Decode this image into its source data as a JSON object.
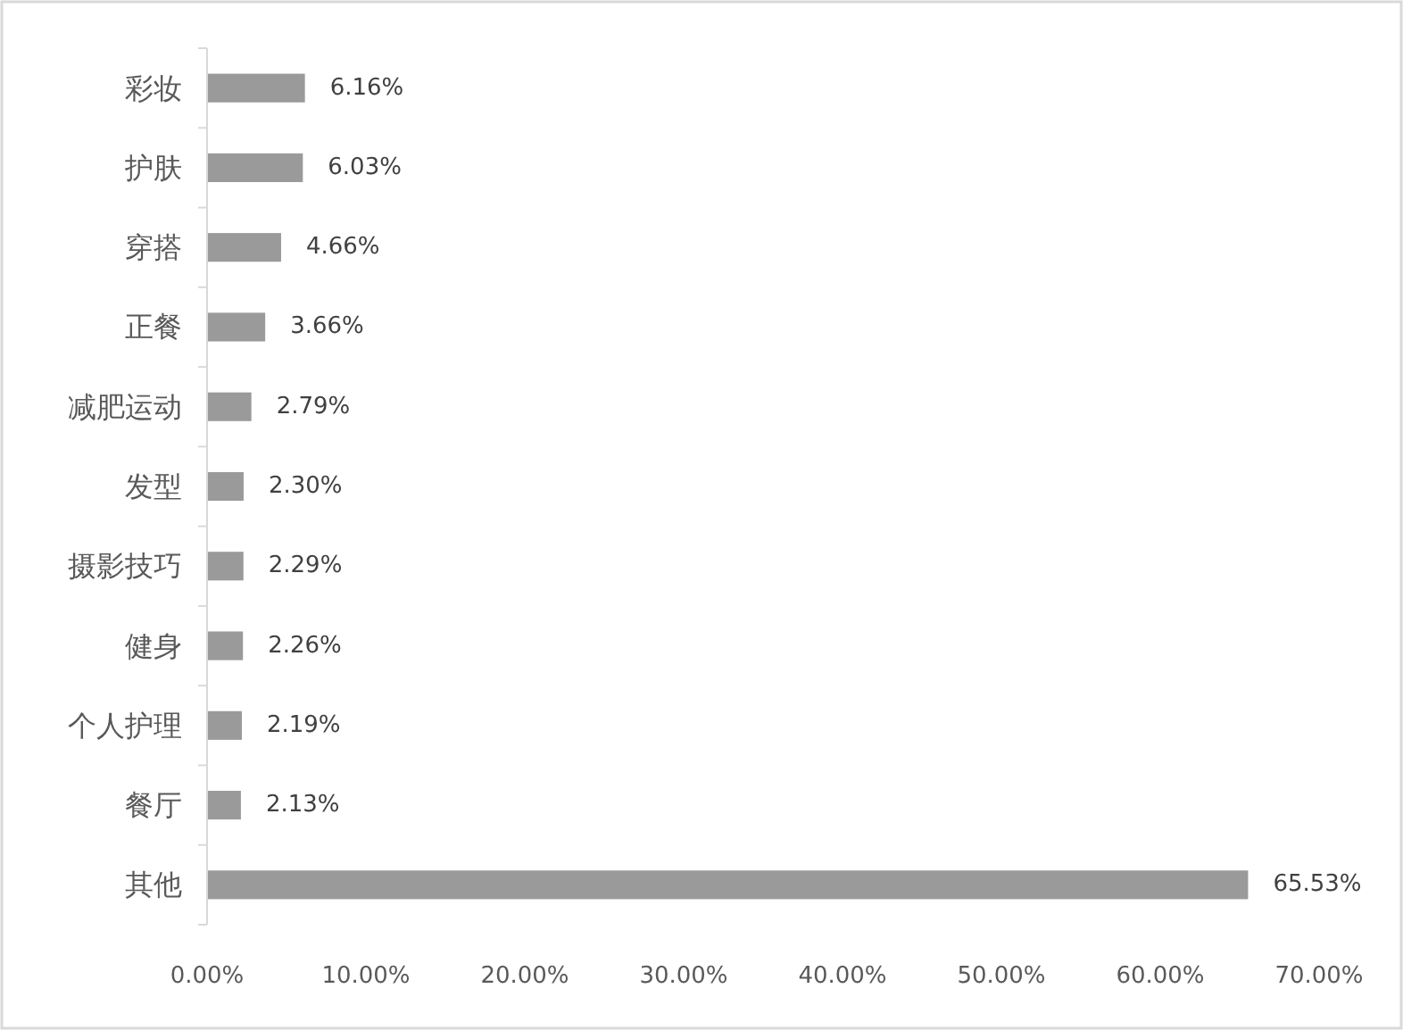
{
  "chart_data": {
    "type": "bar",
    "orientation": "horizontal",
    "categories": [
      "彩妆",
      "护肤",
      "穿搭",
      "正餐",
      "减肥运动",
      "发型",
      "摄影技巧",
      "健身",
      "个人护理",
      "餐厅",
      "其他"
    ],
    "values": [
      6.16,
      6.03,
      4.66,
      3.66,
      2.79,
      2.3,
      2.29,
      2.26,
      2.19,
      2.13,
      65.53
    ],
    "value_labels": [
      "6.16%",
      "6.03%",
      "4.66%",
      "3.66%",
      "2.79%",
      "2.30%",
      "2.29%",
      "2.26%",
      "2.19%",
      "2.13%",
      "65.53%"
    ],
    "color": "#9a9a9a",
    "xlim": [
      0,
      70
    ],
    "xticks": [
      {
        "value": 0,
        "label": "0.00%"
      },
      {
        "value": 10,
        "label": "10.00%"
      },
      {
        "value": 20,
        "label": "20.00%"
      },
      {
        "value": 30,
        "label": "30.00%"
      },
      {
        "value": 40,
        "label": "40.00%"
      },
      {
        "value": 50,
        "label": "50.00%"
      },
      {
        "value": 60,
        "label": "60.00%"
      },
      {
        "value": 70,
        "label": "70.00%"
      }
    ]
  }
}
